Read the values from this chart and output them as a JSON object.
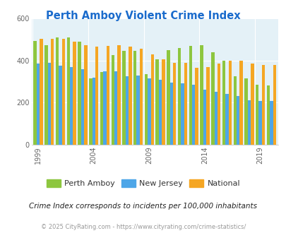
{
  "title": "Perth Amboy Violent Crime Index",
  "years": [
    1999,
    2000,
    2001,
    2002,
    2003,
    2004,
    2005,
    2006,
    2007,
    2008,
    2009,
    2010,
    2011,
    2012,
    2013,
    2014,
    2015,
    2016,
    2017,
    2018,
    2019,
    2020
  ],
  "perth_amboy": [
    495,
    475,
    510,
    510,
    490,
    315,
    345,
    425,
    445,
    445,
    335,
    405,
    450,
    460,
    470,
    475,
    440,
    400,
    325,
    315,
    285,
    280
  ],
  "new_jersey": [
    385,
    390,
    375,
    370,
    360,
    320,
    350,
    350,
    325,
    330,
    315,
    310,
    295,
    290,
    285,
    260,
    250,
    240,
    230,
    210,
    208,
    207
  ],
  "national": [
    505,
    505,
    505,
    490,
    475,
    465,
    470,
    475,
    465,
    455,
    430,
    405,
    390,
    390,
    365,
    370,
    385,
    400,
    400,
    385,
    380,
    380
  ],
  "perth_amboy_color": "#8dc63f",
  "new_jersey_color": "#4da6e8",
  "national_color": "#f5a623",
  "bg_color": "#e4f1f7",
  "title_color": "#1a6bcc",
  "ylabel_max": 600,
  "ylabel_min": 0,
  "subtitle": "Crime Index corresponds to incidents per 100,000 inhabitants",
  "footer": "© 2025 CityRating.com - https://www.cityrating.com/crime-statistics/",
  "tick_years": [
    1999,
    2004,
    2009,
    2014,
    2019
  ],
  "legend_labels": [
    "Perth Amboy",
    "New Jersey",
    "National"
  ]
}
